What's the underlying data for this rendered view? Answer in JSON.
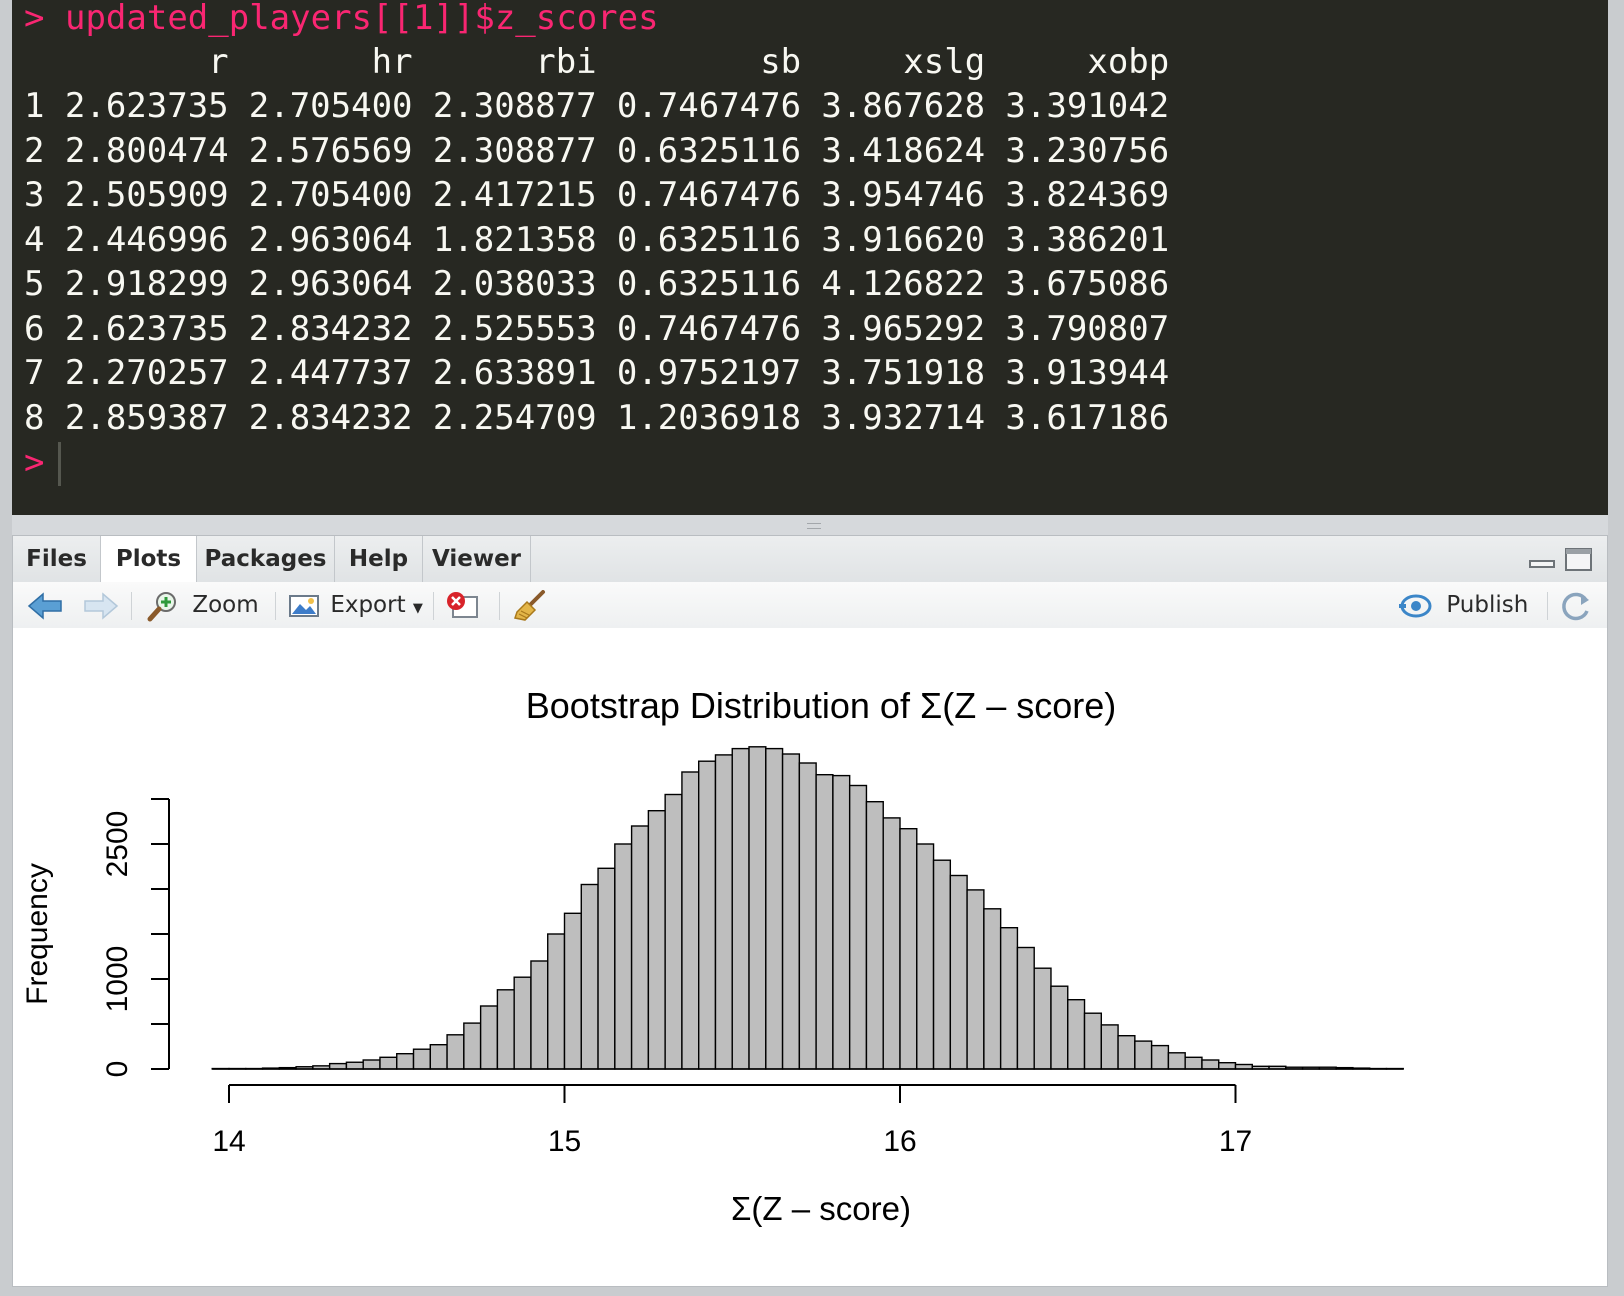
{
  "console": {
    "prompt_symbol": ">",
    "command": "updated_players[[1]]$z_scores",
    "headers": [
      "r",
      "hr",
      "rbi",
      "sb",
      "xslg",
      "xobp"
    ],
    "rows": [
      [
        "1",
        "2.623735",
        "2.705400",
        "2.308877",
        "0.7467476",
        "3.867628",
        "3.391042"
      ],
      [
        "2",
        "2.800474",
        "2.576569",
        "2.308877",
        "0.6325116",
        "3.418624",
        "3.230756"
      ],
      [
        "3",
        "2.505909",
        "2.705400",
        "2.417215",
        "0.7467476",
        "3.954746",
        "3.824369"
      ],
      [
        "4",
        "2.446996",
        "2.963064",
        "1.821358",
        "0.6325116",
        "3.916620",
        "3.386201"
      ],
      [
        "5",
        "2.918299",
        "2.963064",
        "2.038033",
        "0.6325116",
        "4.126822",
        "3.675086"
      ],
      [
        "6",
        "2.623735",
        "2.834232",
        "2.525553",
        "0.7467476",
        "3.965292",
        "3.790807"
      ],
      [
        "7",
        "2.270257",
        "2.447737",
        "2.633891",
        "0.9752197",
        "3.751918",
        "3.913944"
      ],
      [
        "8",
        "2.859387",
        "2.834232",
        "2.254709",
        "1.2036918",
        "3.932714",
        "3.617186"
      ]
    ]
  },
  "tabs": [
    {
      "label": "Files",
      "active": false
    },
    {
      "label": "Plots",
      "active": true
    },
    {
      "label": "Packages",
      "active": false
    },
    {
      "label": "Help",
      "active": false
    },
    {
      "label": "Viewer",
      "active": false
    }
  ],
  "toolbar": {
    "zoom_label": "Zoom",
    "export_label": "Export",
    "publish_label": "Publish",
    "icons": [
      "back-arrow-icon",
      "forward-arrow-icon",
      "zoom-icon",
      "export-icon",
      "remove-plot-icon",
      "broom-icon",
      "publish-icon",
      "refresh-icon"
    ]
  },
  "chart_data": {
    "type": "bar",
    "title": "Bootstrap Distribution of Σ(Z – score)",
    "xlabel": "Σ(Z – score)",
    "ylabel": "Frequency",
    "xlim": [
      14,
      17.7
    ],
    "ylim": [
      0,
      3000
    ],
    "xticks": [
      14,
      15,
      16,
      17
    ],
    "yticks": [
      0,
      1000,
      2500
    ],
    "yticks_minor": [
      500,
      1500,
      2000,
      3000
    ],
    "bin_width": 0.05,
    "bin_start": 13.95,
    "bar_fill": "#bebebe",
    "values": [
      5,
      5,
      5,
      10,
      15,
      25,
      35,
      60,
      75,
      100,
      130,
      170,
      220,
      270,
      380,
      510,
      700,
      880,
      1020,
      1200,
      1500,
      1730,
      2050,
      2230,
      2500,
      2700,
      2870,
      3050,
      3300,
      3420,
      3490,
      3560,
      3580,
      3560,
      3500,
      3400,
      3270,
      3260,
      3150,
      2970,
      2790,
      2670,
      2500,
      2320,
      2150,
      1990,
      1780,
      1570,
      1350,
      1120,
      920,
      770,
      620,
      490,
      370,
      310,
      260,
      180,
      130,
      100,
      70,
      50,
      30,
      30,
      20,
      20,
      20,
      15,
      10,
      5,
      5
    ]
  }
}
